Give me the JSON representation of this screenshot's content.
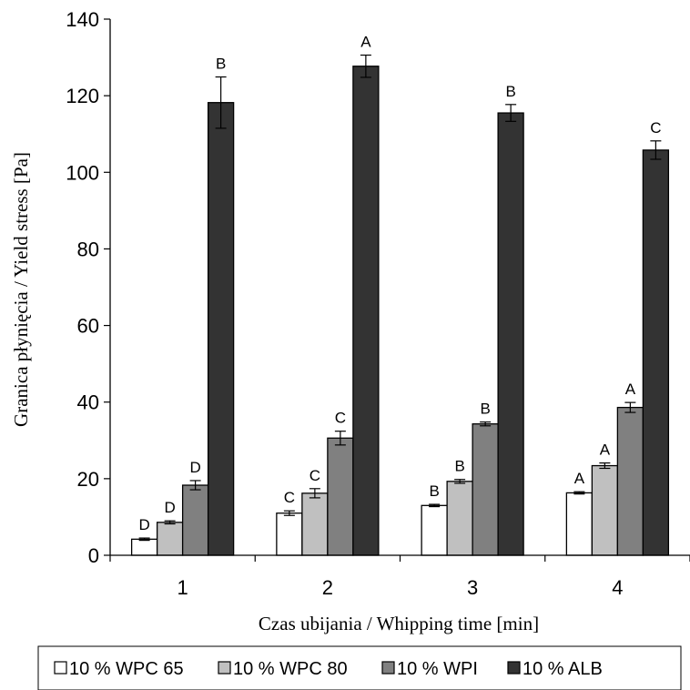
{
  "chart_data": {
    "type": "bar",
    "xlabel": "Czas ubijania / Whipping time [min]",
    "ylabel": "Granica płynięcia / Yield stress [Pa]",
    "ylim": [
      0,
      140
    ],
    "yticks": [
      0,
      20,
      40,
      60,
      80,
      100,
      120,
      140
    ],
    "categories": [
      "1",
      "2",
      "3",
      "4"
    ],
    "grid": false,
    "legend_position": "bottom",
    "series": [
      {
        "name": "10 % WPC 65",
        "color": "#ffffff",
        "values": [
          4.2,
          11.0,
          13.0,
          16.3
        ],
        "errors": [
          0.3,
          0.6,
          0.3,
          0.3
        ],
        "letters": [
          "D",
          "C",
          "B",
          "A"
        ]
      },
      {
        "name": "10 % WPC 80",
        "color": "#c0c0c0",
        "values": [
          8.6,
          16.2,
          19.3,
          23.4
        ],
        "errors": [
          0.4,
          1.2,
          0.5,
          0.7
        ],
        "letters": [
          "D",
          "C",
          "B",
          "A"
        ]
      },
      {
        "name": "10 % WPI",
        "color": "#808080",
        "values": [
          18.3,
          30.6,
          34.3,
          38.6
        ],
        "errors": [
          1.2,
          1.8,
          0.5,
          1.3
        ],
        "letters": [
          "D",
          "C",
          "B",
          "A"
        ]
      },
      {
        "name": "10 % ALB",
        "color": "#333333",
        "values": [
          118.2,
          127.7,
          115.5,
          105.8
        ],
        "errors": [
          6.7,
          2.9,
          2.2,
          2.4
        ],
        "letters": [
          "B",
          "A",
          "B",
          "C"
        ]
      }
    ]
  }
}
